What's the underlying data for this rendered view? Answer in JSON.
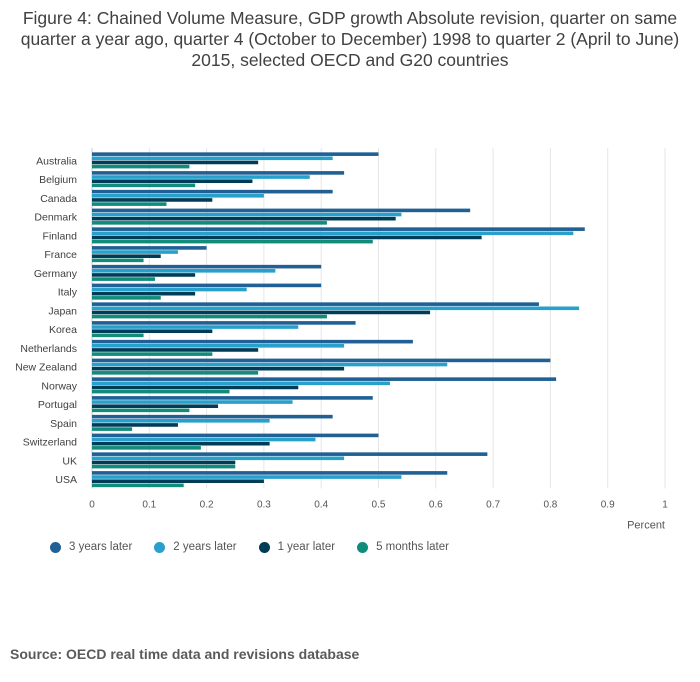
{
  "title": "Figure 4: Chained Volume Measure, GDP growth Absolute revision, quarter on same quarter a year ago, quarter 4 (October to December) 1998 to quarter 2 (April to June) 2015, selected OECD and G20 countries",
  "source": "Source: OECD real time data and revisions database",
  "chart_data": {
    "type": "bar",
    "orientation": "horizontal",
    "title": "Figure 4: Chained Volume Measure, GDP growth Absolute revision, quarter on same quarter a year ago, quarter 4 (October to December) 1998 to quarter 2 (April to June) 2015, selected OECD and G20 countries",
    "xlabel": "Percent",
    "ylabel": "",
    "xlim": [
      0,
      1
    ],
    "xticks": [
      0,
      0.1,
      0.2,
      0.3,
      0.4,
      0.5,
      0.6,
      0.7,
      0.8,
      0.9,
      1
    ],
    "xtick_labels": [
      "0",
      "0.1",
      "0.2",
      "0.3",
      "0.4",
      "0.5",
      "0.6",
      "0.7",
      "0.8",
      "0.9",
      "1"
    ],
    "grid": true,
    "legend_position": "bottom",
    "categories": [
      "Australia",
      "Belgium",
      "Canada",
      "Denmark",
      "Finland",
      "France",
      "Germany",
      "Italy",
      "Japan",
      "Korea",
      "Netherlands",
      "New Zealand",
      "Norway",
      "Portugal",
      "Spain",
      "Switzerland",
      "UK",
      "USA"
    ],
    "series": [
      {
        "name": "3 years later",
        "color": "#206095",
        "values": [
          0.5,
          0.44,
          0.42,
          0.66,
          0.86,
          0.2,
          0.4,
          0.4,
          0.78,
          0.46,
          0.56,
          0.8,
          0.81,
          0.49,
          0.42,
          0.5,
          0.69,
          0.62
        ]
      },
      {
        "name": "2 years later",
        "color": "#27a0cc",
        "values": [
          0.42,
          0.38,
          0.3,
          0.54,
          0.84,
          0.15,
          0.32,
          0.27,
          0.85,
          0.36,
          0.44,
          0.62,
          0.52,
          0.35,
          0.31,
          0.39,
          0.44,
          0.54
        ]
      },
      {
        "name": "1 year later",
        "color": "#003c57",
        "values": [
          0.29,
          0.28,
          0.21,
          0.53,
          0.68,
          0.12,
          0.18,
          0.18,
          0.59,
          0.21,
          0.29,
          0.44,
          0.36,
          0.22,
          0.15,
          0.31,
          0.25,
          0.3
        ]
      },
      {
        "name": "5 months later",
        "color": "#118c7b",
        "values": [
          0.17,
          0.18,
          0.13,
          0.41,
          0.49,
          0.09,
          0.11,
          0.12,
          0.41,
          0.09,
          0.21,
          0.29,
          0.24,
          0.17,
          0.07,
          0.19,
          0.25,
          0.16
        ]
      }
    ]
  }
}
